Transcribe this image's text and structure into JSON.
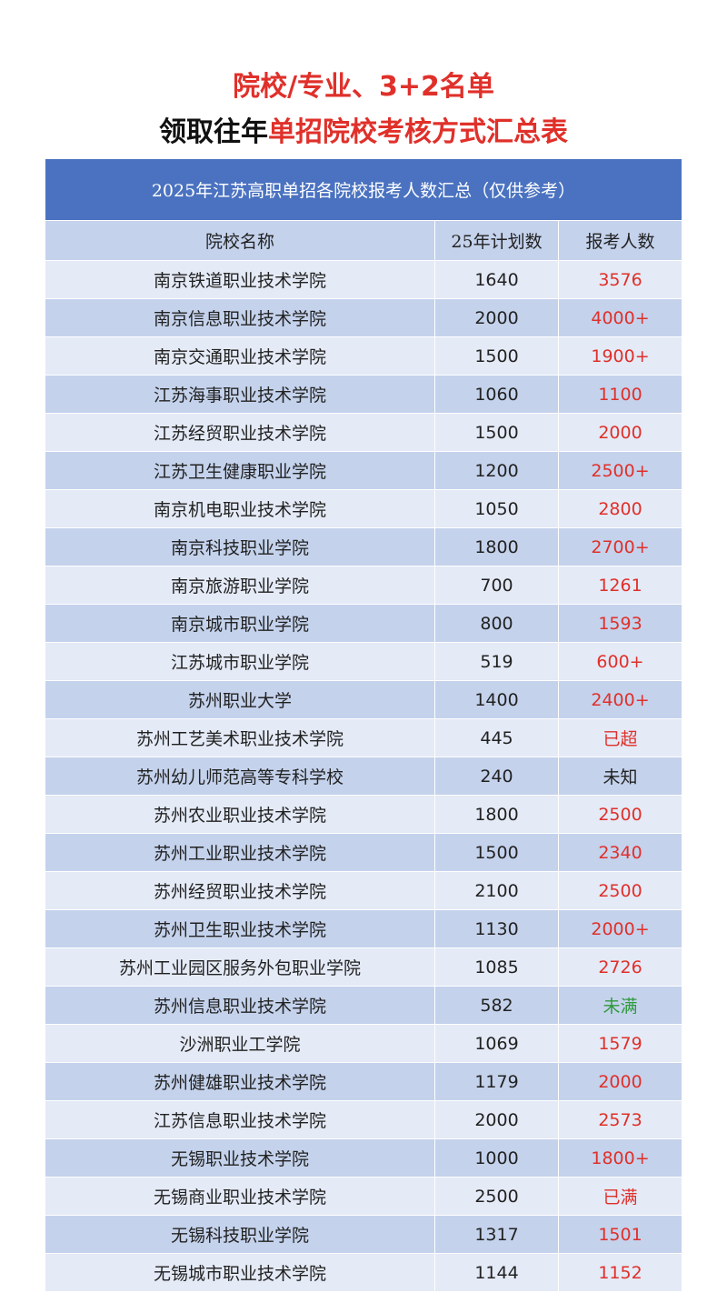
{
  "header": {
    "line1": "院校/专业、3+2名单",
    "line2_plain": "领取往年",
    "line2_red": "单招院校考核方式汇总表"
  },
  "table": {
    "title": "2025年江苏高职单招各院校报考人数汇总（仅供参考）",
    "columns": [
      "院校名称",
      "25年计划数",
      "报考人数"
    ],
    "rows": [
      {
        "name": "南京铁道职业技术学院",
        "plan": "1640",
        "count": "3576",
        "color": "#e0302a"
      },
      {
        "name": "南京信息职业技术学院",
        "plan": "2000",
        "count": "4000+",
        "color": "#e0302a"
      },
      {
        "name": "南京交通职业技术学院",
        "plan": "1500",
        "count": "1900+",
        "color": "#e0302a"
      },
      {
        "name": "江苏海事职业技术学院",
        "plan": "1060",
        "count": "1100",
        "color": "#e0302a"
      },
      {
        "name": "江苏经贸职业技术学院",
        "plan": "1500",
        "count": "2000",
        "color": "#e0302a"
      },
      {
        "name": "江苏卫生健康职业学院",
        "plan": "1200",
        "count": "2500+",
        "color": "#e0302a"
      },
      {
        "name": "南京机电职业技术学院",
        "plan": "1050",
        "count": "2800",
        "color": "#e0302a"
      },
      {
        "name": "南京科技职业学院",
        "plan": "1800",
        "count": "2700+",
        "color": "#e0302a"
      },
      {
        "name": "南京旅游职业学院",
        "plan": "700",
        "count": "1261",
        "color": "#e0302a"
      },
      {
        "name": "南京城市职业学院",
        "plan": "800",
        "count": "1593",
        "color": "#e0302a"
      },
      {
        "name": "江苏城市职业学院",
        "plan": "519",
        "count": "600+",
        "color": "#e0302a"
      },
      {
        "name": "苏州职业大学",
        "plan": "1400",
        "count": "2400+",
        "color": "#e0302a"
      },
      {
        "name": "苏州工艺美术职业技术学院",
        "plan": "445",
        "count": "已超",
        "color": "#e0302a"
      },
      {
        "name": "苏州幼儿师范高等专科学校",
        "plan": "240",
        "count": "未知",
        "color": "#222222"
      },
      {
        "name": "苏州农业职业技术学院",
        "plan": "1800",
        "count": "2500",
        "color": "#e0302a"
      },
      {
        "name": "苏州工业职业技术学院",
        "plan": "1500",
        "count": "2340",
        "color": "#e0302a"
      },
      {
        "name": "苏州经贸职业技术学院",
        "plan": "2100",
        "count": "2500",
        "color": "#e0302a"
      },
      {
        "name": "苏州卫生职业技术学院",
        "plan": "1130",
        "count": "2000+",
        "color": "#e0302a"
      },
      {
        "name": "苏州工业园区服务外包职业学院",
        "plan": "1085",
        "count": "2726",
        "color": "#e0302a"
      },
      {
        "name": "苏州信息职业技术学院",
        "plan": "582",
        "count": "未满",
        "color": "#2e9a3c"
      },
      {
        "name": "沙洲职业工学院",
        "plan": "1069",
        "count": "1579",
        "color": "#e0302a"
      },
      {
        "name": "苏州健雄职业技术学院",
        "plan": "1179",
        "count": "2000",
        "color": "#e0302a"
      },
      {
        "name": "江苏信息职业技术学院",
        "plan": "2000",
        "count": "2573",
        "color": "#e0302a"
      },
      {
        "name": "无锡职业技术学院",
        "plan": "1000",
        "count": "1800+",
        "color": "#e0302a"
      },
      {
        "name": "无锡商业职业技术学院",
        "plan": "2500",
        "count": "已满",
        "color": "#e0302a"
      },
      {
        "name": "无锡科技职业学院",
        "plan": "1317",
        "count": "1501",
        "color": "#e0302a"
      },
      {
        "name": "无锡城市职业技术学院",
        "plan": "1144",
        "count": "1152",
        "color": "#e0302a"
      }
    ]
  }
}
